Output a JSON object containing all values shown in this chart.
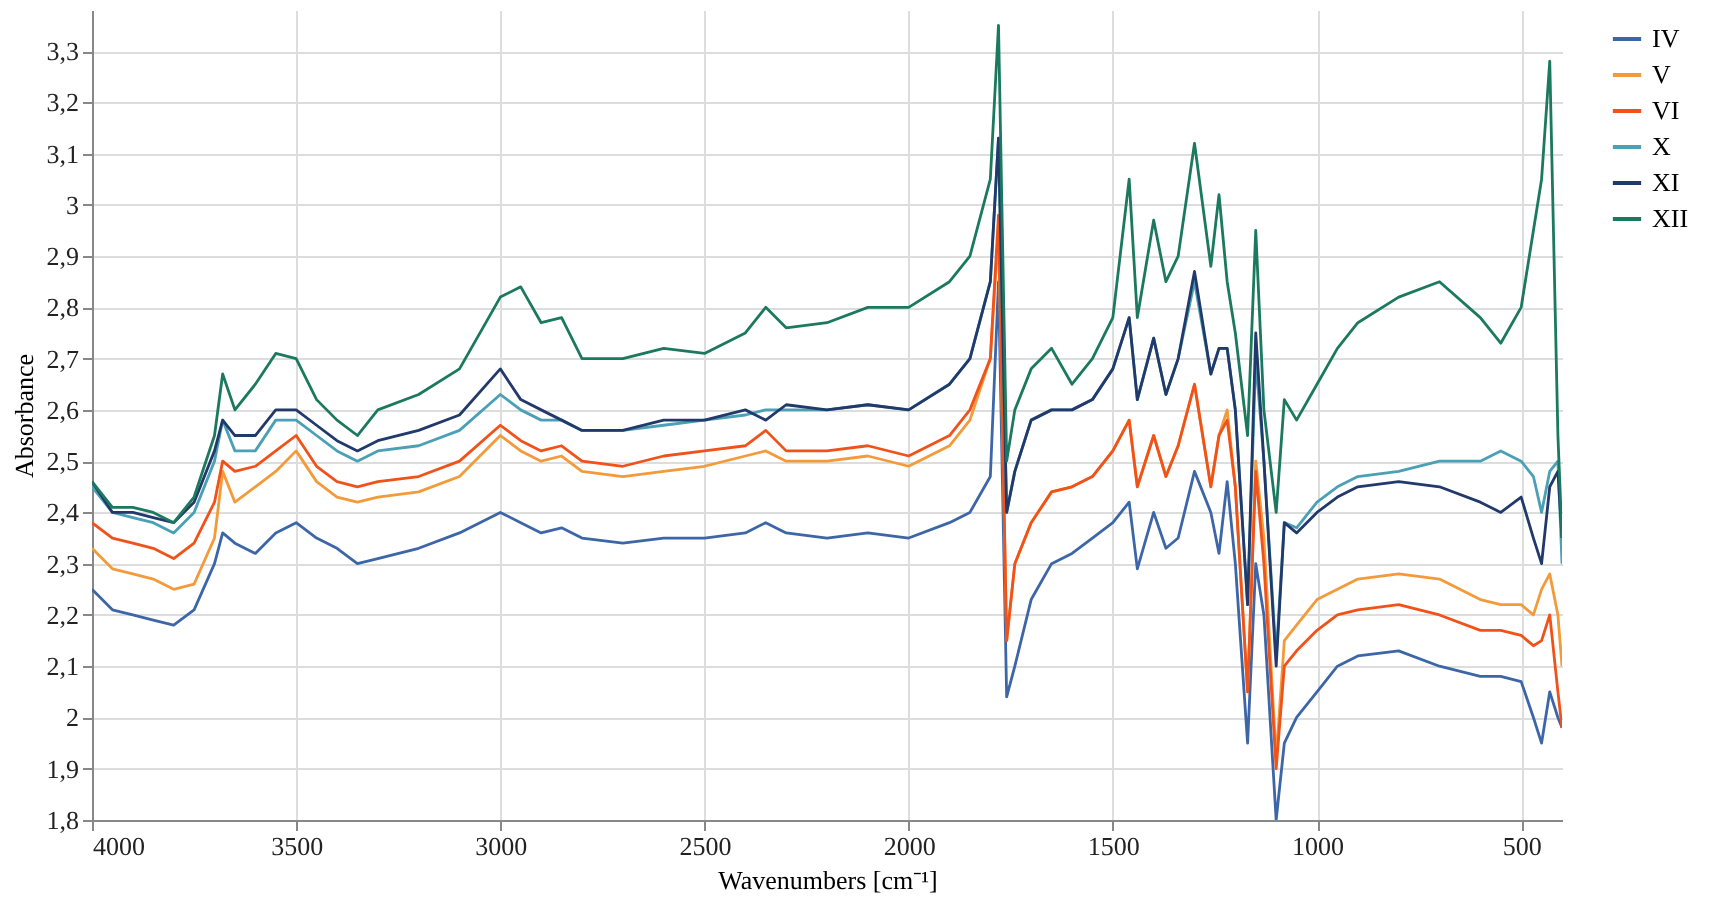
{
  "chart_data": {
    "type": "line",
    "xlabel": "Wavenumbers [cm⁻¹]",
    "ylabel": "Absorbance",
    "xlim": [
      4000,
      400
    ],
    "ylim": [
      1.8,
      3.38
    ],
    "xticks": [
      4000,
      3500,
      3000,
      2500,
      2000,
      1500,
      1000,
      500
    ],
    "yticks": [
      {
        "value": 1.8,
        "label": "1,8"
      },
      {
        "value": 1.9,
        "label": "1,9"
      },
      2,
      {
        "value": 2.1,
        "label": "2,1"
      },
      {
        "value": 2.2,
        "label": "2,2"
      },
      {
        "value": 2.3,
        "label": "2,3"
      },
      {
        "value": 2.4,
        "label": "2,4"
      },
      {
        "value": 2.5,
        "label": "2,5"
      },
      {
        "value": 2.6,
        "label": "2,6"
      },
      {
        "value": 2.7,
        "label": "2,7"
      },
      {
        "value": 2.8,
        "label": "2,8"
      },
      {
        "value": 2.9,
        "label": "2,9"
      },
      3,
      {
        "value": 3.1,
        "label": "3,1"
      },
      {
        "value": 3.2,
        "label": "3,2"
      },
      {
        "value": 3.3,
        "label": "3,3"
      }
    ],
    "grid": true,
    "legend": "top right",
    "marker": "none",
    "line_style": "solid",
    "x": [
      4000,
      3950,
      3900,
      3850,
      3800,
      3750,
      3700,
      3680,
      3650,
      3600,
      3550,
      3500,
      3450,
      3400,
      3350,
      3300,
      3200,
      3100,
      3000,
      2950,
      2900,
      2850,
      2800,
      2700,
      2600,
      2500,
      2400,
      2350,
      2300,
      2200,
      2100,
      2000,
      1900,
      1850,
      1800,
      1780,
      1760,
      1740,
      1700,
      1650,
      1600,
      1550,
      1500,
      1460,
      1440,
      1400,
      1370,
      1340,
      1300,
      1260,
      1240,
      1220,
      1200,
      1170,
      1150,
      1130,
      1100,
      1080,
      1050,
      1000,
      950,
      900,
      800,
      700,
      600,
      550,
      500,
      470,
      450,
      430,
      410,
      400
    ],
    "series": [
      {
        "name": "IV",
        "color": "#3d66a8",
        "values": [
          2.25,
          2.21,
          2.2,
          2.19,
          2.18,
          2.21,
          2.3,
          2.36,
          2.34,
          2.32,
          2.36,
          2.38,
          2.35,
          2.33,
          2.3,
          2.31,
          2.33,
          2.36,
          2.4,
          2.38,
          2.36,
          2.37,
          2.35,
          2.34,
          2.35,
          2.35,
          2.36,
          2.38,
          2.36,
          2.35,
          2.36,
          2.35,
          2.38,
          2.4,
          2.47,
          2.85,
          2.04,
          2.1,
          2.23,
          2.3,
          2.32,
          2.35,
          2.38,
          2.42,
          2.29,
          2.4,
          2.33,
          2.35,
          2.48,
          2.4,
          2.32,
          2.46,
          2.3,
          1.95,
          2.3,
          2.2,
          1.8,
          1.95,
          2.0,
          2.05,
          2.1,
          2.12,
          2.13,
          2.1,
          2.08,
          2.08,
          2.07,
          2.0,
          1.95,
          2.05,
          2.0,
          1.98
        ]
      },
      {
        "name": "V",
        "color": "#f39a3a",
        "values": [
          2.33,
          2.29,
          2.28,
          2.27,
          2.25,
          2.26,
          2.35,
          2.48,
          2.42,
          2.45,
          2.48,
          2.52,
          2.46,
          2.43,
          2.42,
          2.43,
          2.44,
          2.47,
          2.55,
          2.52,
          2.5,
          2.51,
          2.48,
          2.47,
          2.48,
          2.49,
          2.51,
          2.52,
          2.5,
          2.5,
          2.51,
          2.49,
          2.53,
          2.58,
          2.7,
          2.95,
          2.15,
          2.3,
          2.38,
          2.44,
          2.45,
          2.47,
          2.52,
          2.58,
          2.45,
          2.55,
          2.47,
          2.53,
          2.65,
          2.45,
          2.55,
          2.6,
          2.45,
          2.05,
          2.5,
          2.35,
          1.92,
          2.15,
          2.18,
          2.23,
          2.25,
          2.27,
          2.28,
          2.27,
          2.23,
          2.22,
          2.22,
          2.2,
          2.25,
          2.28,
          2.2,
          2.1
        ]
      },
      {
        "name": "VI",
        "color": "#f0521a",
        "values": [
          2.38,
          2.35,
          2.34,
          2.33,
          2.31,
          2.34,
          2.42,
          2.5,
          2.48,
          2.49,
          2.52,
          2.55,
          2.49,
          2.46,
          2.45,
          2.46,
          2.47,
          2.5,
          2.57,
          2.54,
          2.52,
          2.53,
          2.5,
          2.49,
          2.51,
          2.52,
          2.53,
          2.56,
          2.52,
          2.52,
          2.53,
          2.51,
          2.55,
          2.6,
          2.7,
          2.98,
          2.15,
          2.3,
          2.38,
          2.44,
          2.45,
          2.47,
          2.52,
          2.58,
          2.45,
          2.55,
          2.47,
          2.53,
          2.65,
          2.45,
          2.55,
          2.58,
          2.45,
          2.05,
          2.48,
          2.3,
          1.9,
          2.1,
          2.13,
          2.17,
          2.2,
          2.21,
          2.22,
          2.2,
          2.17,
          2.17,
          2.16,
          2.14,
          2.15,
          2.2,
          2.05,
          1.98
        ]
      },
      {
        "name": "X",
        "color": "#4aa0b5",
        "values": [
          2.45,
          2.4,
          2.39,
          2.38,
          2.36,
          2.4,
          2.5,
          2.58,
          2.52,
          2.52,
          2.58,
          2.58,
          2.55,
          2.52,
          2.5,
          2.52,
          2.53,
          2.56,
          2.63,
          2.6,
          2.58,
          2.58,
          2.56,
          2.56,
          2.57,
          2.58,
          2.59,
          2.6,
          2.6,
          2.6,
          2.61,
          2.6,
          2.65,
          2.7,
          2.85,
          3.13,
          2.4,
          2.48,
          2.58,
          2.6,
          2.6,
          2.62,
          2.68,
          2.78,
          2.62,
          2.74,
          2.63,
          2.7,
          2.85,
          2.67,
          2.72,
          2.72,
          2.6,
          2.22,
          2.7,
          2.5,
          2.12,
          2.38,
          2.37,
          2.42,
          2.45,
          2.47,
          2.48,
          2.5,
          2.5,
          2.52,
          2.5,
          2.47,
          2.4,
          2.48,
          2.5,
          2.3
        ]
      },
      {
        "name": "XI",
        "color": "#22396b",
        "values": [
          2.46,
          2.4,
          2.4,
          2.39,
          2.38,
          2.42,
          2.52,
          2.58,
          2.55,
          2.55,
          2.6,
          2.6,
          2.57,
          2.54,
          2.52,
          2.54,
          2.56,
          2.59,
          2.68,
          2.62,
          2.6,
          2.58,
          2.56,
          2.56,
          2.58,
          2.58,
          2.6,
          2.58,
          2.61,
          2.6,
          2.61,
          2.6,
          2.65,
          2.7,
          2.85,
          3.13,
          2.4,
          2.48,
          2.58,
          2.6,
          2.6,
          2.62,
          2.68,
          2.78,
          2.62,
          2.74,
          2.63,
          2.7,
          2.87,
          2.67,
          2.72,
          2.72,
          2.6,
          2.22,
          2.75,
          2.5,
          2.1,
          2.38,
          2.36,
          2.4,
          2.43,
          2.45,
          2.46,
          2.45,
          2.42,
          2.4,
          2.43,
          2.35,
          2.3,
          2.45,
          2.48,
          2.35
        ]
      },
      {
        "name": "XII",
        "color": "#1b7a5e",
        "values": [
          2.46,
          2.41,
          2.41,
          2.4,
          2.38,
          2.43,
          2.55,
          2.67,
          2.6,
          2.65,
          2.71,
          2.7,
          2.62,
          2.58,
          2.55,
          2.6,
          2.63,
          2.68,
          2.82,
          2.84,
          2.77,
          2.78,
          2.7,
          2.7,
          2.72,
          2.71,
          2.75,
          2.8,
          2.76,
          2.77,
          2.8,
          2.8,
          2.85,
          2.9,
          3.05,
          3.35,
          2.5,
          2.6,
          2.68,
          2.72,
          2.65,
          2.7,
          2.78,
          3.05,
          2.78,
          2.97,
          2.85,
          2.9,
          3.12,
          2.88,
          3.02,
          2.85,
          2.75,
          2.55,
          2.95,
          2.6,
          2.4,
          2.62,
          2.58,
          2.65,
          2.72,
          2.77,
          2.82,
          2.85,
          2.78,
          2.73,
          2.8,
          2.95,
          3.05,
          3.28,
          2.55,
          2.35
        ]
      }
    ]
  }
}
